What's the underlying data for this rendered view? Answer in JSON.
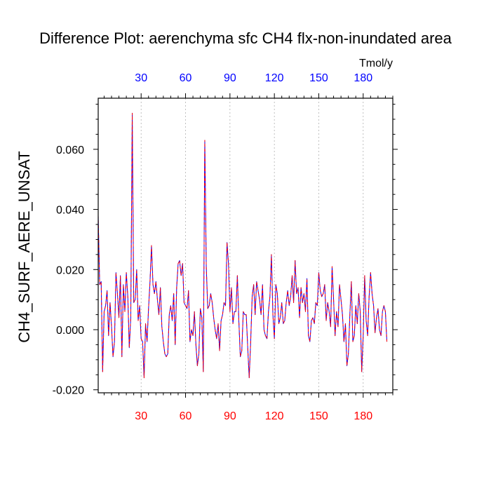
{
  "chart_data": {
    "type": "line",
    "title": "Difference Plot: aerenchyma sfc CH4 flx-non-inundated area",
    "units": "Tmol/y",
    "ylabel": "CH4_SURF_AERE_UNSAT",
    "xlabel": "",
    "xlim": [
      1,
      200
    ],
    "ylim": [
      -0.021,
      0.077
    ],
    "x_ticks": [
      30,
      60,
      90,
      120,
      150,
      180
    ],
    "x_tick_labels": [
      "30",
      "60",
      "90",
      "120",
      "150",
      "180"
    ],
    "y_ticks": [
      -0.02,
      0.0,
      0.02,
      0.04,
      0.06
    ],
    "y_tick_labels": [
      "-0.020",
      "0.000",
      "0.020",
      "0.040",
      "0.060"
    ],
    "top_tick_color": "#0000ff",
    "bottom_tick_color": "#ff0000",
    "grid": "vertical-dashed",
    "series": [
      {
        "name": "series-blue",
        "color": "#0000ff",
        "style": "solid",
        "x_start": 1,
        "values": [
          0.038,
          0.015,
          0.016,
          -0.014,
          0.006,
          0.008,
          0.013,
          -0.002,
          0.009,
          0.001,
          -0.009,
          -0.004,
          0.019,
          0.012,
          0.004,
          0.018,
          -0.009,
          0.015,
          0.006,
          0.019,
          0.011,
          -0.006,
          0.004,
          0.072,
          0.009,
          0.01,
          0.02,
          0.003,
          0.008,
          -0.003,
          -0.004,
          -0.016,
          0.002,
          -0.004,
          0.007,
          0.016,
          0.028,
          0.015,
          0.012,
          0.016,
          0.01,
          0.005,
          0.014,
          0.001,
          -0.004,
          -0.008,
          -0.009,
          -0.008,
          0.005,
          0.008,
          0.003,
          0.012,
          -0.005,
          0.014,
          0.022,
          0.023,
          0.018,
          0.022,
          0.009,
          0.008,
          0.007,
          0.013,
          -0.004,
          0.0,
          -0.002,
          0.006,
          -0.005,
          -0.012,
          -0.008,
          0.007,
          0.004,
          -0.014,
          0.063,
          0.021,
          0.007,
          0.008,
          0.012,
          0.009,
          0.004,
          0.0,
          -0.003,
          0.002,
          -0.007,
          0.003,
          0.005,
          0.009,
          0.008,
          0.029,
          0.022,
          0.006,
          0.014,
          0.002,
          0.006,
          0.006,
          0.018,
          0.003,
          -0.009,
          -0.007,
          0.006,
          0.005,
          0.005,
          -0.006,
          -0.016,
          -0.004,
          0.011,
          0.015,
          0.005,
          0.016,
          0.013,
          0.01,
          0.005,
          0.015,
          0.0,
          -0.002,
          -0.003,
          0.006,
          0.011,
          0.025,
          0.005,
          -0.003,
          0.015,
          0.012,
          0.002,
          0.004,
          0.009,
          0.002,
          0.003,
          0.009,
          0.013,
          0.008,
          0.011,
          0.018,
          0.009,
          0.023,
          0.012,
          0.014,
          0.004,
          0.014,
          0.009,
          0.012,
          0.006,
          0.017,
          -0.002,
          -0.004,
          0.003,
          0.004,
          0.002,
          0.009,
          0.008,
          0.019,
          0.013,
          0.011,
          0.012,
          0.015,
          0.003,
          0.009,
          0.006,
          0.001,
          0.021,
          0.01,
          -0.002,
          0.006,
          0.001,
          0.015,
          0.01,
          0.005,
          -0.004,
          0.002,
          -0.012,
          -0.008,
          0.005,
          0.016,
          -0.004,
          -0.002,
          0.008,
          0.002,
          0.012,
          0.006,
          -0.014,
          -0.002,
          0.018,
          0.003,
          -0.002,
          0.011,
          0.019,
          0.012,
          0.008,
          -0.001,
          0.004,
          0.007,
          0.0,
          -0.002,
          0.006,
          0.008,
          0.006,
          -0.004
        ]
      },
      {
        "name": "series-red",
        "color": "#ff0000",
        "style": "dashed",
        "x_start": 1,
        "values": [
          0.038,
          0.015,
          0.016,
          -0.014,
          0.006,
          0.008,
          0.013,
          -0.002,
          0.009,
          0.001,
          -0.009,
          -0.004,
          0.019,
          0.012,
          0.004,
          0.018,
          -0.009,
          0.015,
          0.006,
          0.019,
          0.011,
          -0.006,
          0.004,
          0.072,
          0.009,
          0.01,
          0.02,
          0.003,
          0.008,
          -0.003,
          -0.004,
          -0.016,
          0.002,
          -0.004,
          0.007,
          0.016,
          0.028,
          0.015,
          0.012,
          0.016,
          0.01,
          0.005,
          0.014,
          0.001,
          -0.004,
          -0.008,
          -0.009,
          -0.008,
          0.005,
          0.008,
          0.003,
          0.012,
          -0.005,
          0.014,
          0.022,
          0.023,
          0.018,
          0.022,
          0.009,
          0.008,
          0.007,
          0.013,
          -0.004,
          0.0,
          -0.002,
          0.006,
          -0.005,
          -0.012,
          -0.008,
          0.007,
          0.004,
          -0.014,
          0.063,
          0.021,
          0.007,
          0.008,
          0.012,
          0.009,
          0.004,
          0.0,
          -0.003,
          0.002,
          -0.007,
          0.003,
          0.005,
          0.009,
          0.008,
          0.029,
          0.022,
          0.006,
          0.014,
          0.002,
          0.006,
          0.006,
          0.018,
          0.003,
          -0.009,
          -0.007,
          0.006,
          0.005,
          0.005,
          -0.006,
          -0.016,
          -0.004,
          0.011,
          0.015,
          0.005,
          0.016,
          0.013,
          0.01,
          0.005,
          0.015,
          0.0,
          -0.002,
          -0.003,
          0.006,
          0.011,
          0.025,
          0.005,
          -0.003,
          0.015,
          0.012,
          0.002,
          0.004,
          0.009,
          0.002,
          0.003,
          0.009,
          0.013,
          0.008,
          0.011,
          0.018,
          0.009,
          0.023,
          0.012,
          0.014,
          0.004,
          0.014,
          0.009,
          0.012,
          0.006,
          0.017,
          -0.002,
          -0.004,
          0.003,
          0.004,
          0.002,
          0.009,
          0.008,
          0.019,
          0.013,
          0.011,
          0.012,
          0.015,
          0.003,
          0.009,
          0.006,
          0.001,
          0.021,
          0.01,
          -0.002,
          0.006,
          0.001,
          0.015,
          0.01,
          0.005,
          -0.004,
          0.002,
          -0.012,
          -0.008,
          0.005,
          0.016,
          -0.004,
          -0.002,
          0.008,
          0.002,
          0.012,
          0.006,
          -0.014,
          -0.002,
          0.018,
          0.003,
          -0.002,
          0.011,
          0.019,
          0.012,
          0.008,
          -0.001,
          0.004,
          0.007,
          0.0,
          -0.002,
          0.006,
          0.008,
          0.006,
          -0.004
        ]
      }
    ]
  }
}
